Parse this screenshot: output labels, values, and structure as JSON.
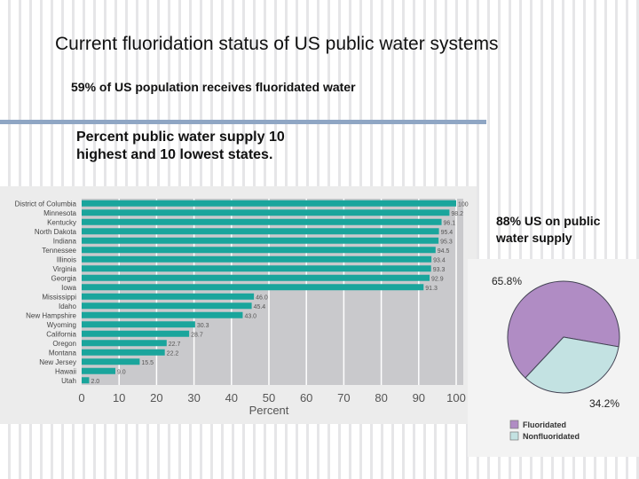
{
  "title": "Current fluoridation status of US public water systems",
  "subtitle": "59% of US population receives fluoridated water",
  "bar_heading": "Percent public water supply 10 highest and 10 lowest states.",
  "pie_note": "88%  US on public water supply",
  "colors": {
    "bar": "#1aa59c",
    "plot_bg": "#c9c9cc",
    "fluoridated": "#b08cc4",
    "nonfluoridated": "#c3e2e2"
  },
  "chart_data": [
    {
      "type": "bar",
      "orientation": "horizontal",
      "xlabel": "Percent",
      "xlim": [
        0,
        100
      ],
      "xticks": [
        "0",
        "10",
        "20",
        "30",
        "40",
        "50",
        "60",
        "70",
        "80",
        "90",
        "100"
      ],
      "grid": true,
      "categories": [
        "District of Columbia",
        "Minnesota",
        "Kentucky",
        "North Dakota",
        "Indiana",
        "Tennessee",
        "Illinois",
        "Virginia",
        "Georgia",
        "Iowa",
        "Mississippi",
        "Idaho",
        "New Hampshire",
        "Wyoming",
        "California",
        "Oregon",
        "Montana",
        "New Jersey",
        "Hawaii",
        "Utah"
      ],
      "values": [
        100,
        98.2,
        96.1,
        95.4,
        95.3,
        94.5,
        93.4,
        93.3,
        92.9,
        91.3,
        46.0,
        45.4,
        43.0,
        30.3,
        28.7,
        22.7,
        22.2,
        15.5,
        9.0,
        2.0
      ],
      "value_labels": [
        "100",
        "98.2",
        "96.1",
        "95.4",
        "95.3",
        "94.5",
        "93.4",
        "93.3",
        "92.9",
        "91.3",
        "46.0",
        "45.4",
        "43.0",
        "30.3",
        "28.7",
        "22.7",
        "22.2",
        "15.5",
        "9.0",
        "2.0"
      ]
    },
    {
      "type": "pie",
      "slices": [
        {
          "name": "Fluoridated",
          "value": 65.8,
          "label": "65.8%"
        },
        {
          "name": "Nonfluoridated",
          "value": 34.2,
          "label": "34.2%"
        }
      ],
      "legend": "bottom"
    }
  ]
}
